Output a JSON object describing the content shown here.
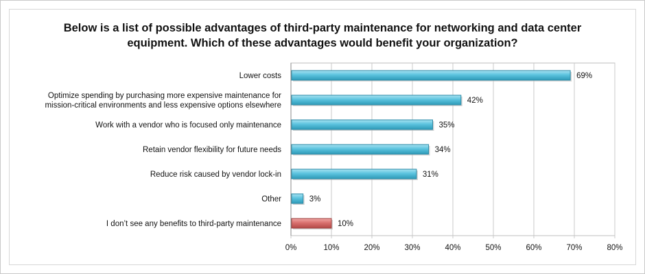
{
  "chart_data": {
    "type": "bar",
    "orientation": "horizontal",
    "title": "Below is a list of possible advantages of third-party maintenance for networking and data center equipment. Which of these advantages would benefit your organization?",
    "categories": [
      [
        "Lower costs"
      ],
      [
        "Optimize spending by purchasing more expensive maintenance for",
        "mission-critical environments and less expensive options elsewhere"
      ],
      [
        "Work with a vendor who is focused only maintenance"
      ],
      [
        "Retain vendor flexibility for future needs"
      ],
      [
        "Reduce risk caused by vendor lock-in"
      ],
      [
        "Other"
      ],
      [
        "I don’t see any benefits to third-party maintenance"
      ]
    ],
    "values": [
      69,
      42,
      35,
      34,
      31,
      3,
      10
    ],
    "value_labels": [
      "69%",
      "42%",
      "35%",
      "34%",
      "31%",
      "3%",
      "10%"
    ],
    "bar_colors": [
      "#5bc3de",
      "#5bc3de",
      "#5bc3de",
      "#5bc3de",
      "#5bc3de",
      "#5bc3de",
      "#d9706e"
    ],
    "xlim": [
      0,
      80
    ],
    "xticks": [
      0,
      10,
      20,
      30,
      40,
      50,
      60,
      70,
      80
    ],
    "xtick_labels": [
      "0%",
      "10%",
      "20%",
      "30%",
      "40%",
      "50%",
      "60%",
      "70%",
      "80%"
    ],
    "grid": "vertical",
    "legend": "none"
  }
}
